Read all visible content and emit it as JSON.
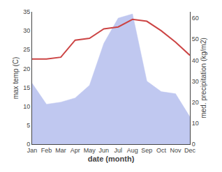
{
  "chart_data": {
    "type": "line",
    "categories": [
      "Jan",
      "Feb",
      "Mar",
      "Apr",
      "May",
      "Jun",
      "Jul",
      "Aug",
      "Sep",
      "Oct",
      "Nov",
      "Dec"
    ],
    "series": [
      {
        "type": "area",
        "axis": "y2",
        "color": "#c0c8f0",
        "values": [
          29,
          19,
          20,
          22,
          28,
          48,
          60,
          62,
          30,
          25,
          24,
          13
        ]
      },
      {
        "type": "line",
        "color": "#cc4444",
        "values": [
          22.5,
          22.5,
          23.0,
          27.5,
          28.0,
          30.5,
          31.0,
          33.0,
          32.5,
          30.0,
          27.0,
          23.5
        ]
      }
    ],
    "xlabel": "date (month)",
    "ylabel": "max temp (C)",
    "y2label": "med. precipitation (kg/m2)",
    "ylim": [
      0,
      35
    ],
    "yticks": [
      0,
      5,
      10,
      15,
      20,
      25,
      30,
      35
    ],
    "y2lim": [
      0,
      63
    ],
    "y2ticks": [
      0,
      10,
      20,
      30,
      40,
      50,
      60
    ],
    "grid": false
  }
}
